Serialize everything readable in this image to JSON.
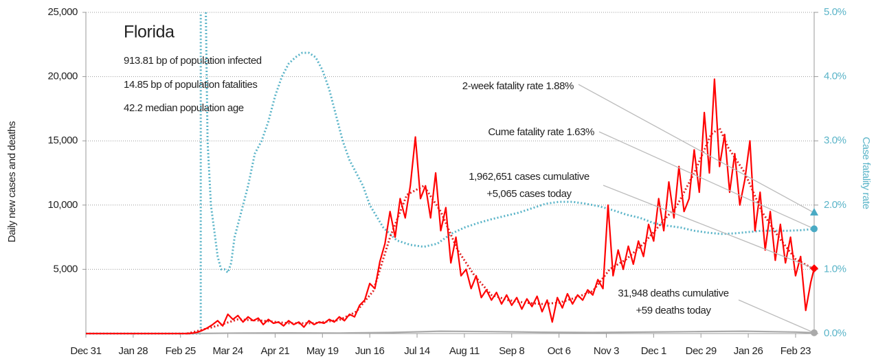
{
  "chart_data": {
    "type": "line",
    "title": "Florida",
    "info": [
      "913.81 bp of population infected",
      "14.85 bp of population fatalities",
      "42.2 median population age"
    ],
    "ylabel": "Daily new cases and deaths",
    "y2label": "Case fatality rate",
    "xlim": [
      0,
      431
    ],
    "xticks": [
      {
        "value": 0,
        "label": "Dec 31"
      },
      {
        "value": 28,
        "label": "Jan 28"
      },
      {
        "value": 56,
        "label": "Feb 25"
      },
      {
        "value": 84,
        "label": "Mar 24"
      },
      {
        "value": 112,
        "label": "Apr 21"
      },
      {
        "value": 140,
        "label": "May 19"
      },
      {
        "value": 168,
        "label": "Jun 16"
      },
      {
        "value": 196,
        "label": "Jul 14"
      },
      {
        "value": 224,
        "label": "Aug 11"
      },
      {
        "value": 252,
        "label": "Sep 8"
      },
      {
        "value": 280,
        "label": "Oct 6"
      },
      {
        "value": 308,
        "label": "Nov 3"
      },
      {
        "value": 336,
        "label": "Dec 1"
      },
      {
        "value": 364,
        "label": "Dec 29"
      },
      {
        "value": 392,
        "label": "Jan 26"
      },
      {
        "value": 420,
        "label": "Feb 23"
      }
    ],
    "ylim": [
      0,
      25000
    ],
    "yticks": [
      {
        "value": 5000,
        "label": "5,000"
      },
      {
        "value": 10000,
        "label": "10,000"
      },
      {
        "value": 15000,
        "label": "15,000"
      },
      {
        "value": 20000,
        "label": "20,000"
      },
      {
        "value": 25000,
        "label": "25,000"
      }
    ],
    "y2lim": [
      0,
      5
    ],
    "y2ticks": [
      {
        "value": 0,
        "label": "0.0%"
      },
      {
        "value": 1,
        "label": "1.0%"
      },
      {
        "value": 2,
        "label": "2.0%"
      },
      {
        "value": 3,
        "label": "3.0%"
      },
      {
        "value": 4,
        "label": "4.0%"
      },
      {
        "value": 5,
        "label": "5.0%"
      }
    ],
    "grid": true,
    "series": [
      {
        "color": "#5ab4c8",
        "style": "dotted",
        "axis": "y2",
        "x": [
          0,
          68,
          68,
          70,
          71,
          72,
          74,
          76,
          78,
          80,
          82,
          84,
          86,
          88,
          92,
          96,
          100,
          104,
          108,
          112,
          116,
          120,
          124,
          128,
          132,
          136,
          140,
          144,
          148,
          152,
          156,
          160,
          164,
          168,
          176,
          184,
          192,
          200,
          208,
          216,
          224,
          232,
          240,
          248,
          256,
          264,
          272,
          280,
          288,
          296,
          304,
          312,
          320,
          328,
          336,
          344,
          352,
          360,
          368,
          376,
          384,
          392,
          400,
          408,
          416,
          424,
          431
        ],
        "values": [
          0,
          0,
          5,
          null,
          5,
          3.0,
          2.0,
          1.6,
          1.2,
          1.0,
          1.0,
          0.95,
          1.1,
          1.5,
          1.9,
          2.3,
          2.8,
          3.0,
          3.3,
          3.7,
          4.0,
          4.2,
          4.3,
          4.37,
          4.37,
          4.3,
          4.1,
          3.8,
          3.4,
          3.0,
          2.7,
          2.5,
          2.3,
          2.0,
          1.65,
          1.45,
          1.38,
          1.35,
          1.4,
          1.55,
          1.65,
          1.72,
          1.78,
          1.83,
          1.88,
          1.95,
          2.02,
          2.05,
          2.05,
          2.02,
          1.98,
          1.92,
          1.85,
          1.8,
          1.72,
          1.68,
          1.65,
          1.6,
          1.57,
          1.55,
          1.56,
          1.58,
          1.6,
          1.6,
          1.6,
          1.61,
          1.63
        ]
      },
      {
        "color": "#aaaaaa",
        "style": "solid",
        "axis": "y",
        "x": [
          0,
          60,
          90,
          120,
          150,
          180,
          210,
          240,
          270,
          300,
          330,
          360,
          390,
          420,
          431
        ],
        "values": [
          0,
          0,
          40,
          50,
          40,
          80,
          180,
          150,
          100,
          80,
          110,
          150,
          180,
          120,
          59
        ]
      },
      {
        "color": "#e02020",
        "style": "dotted",
        "axis": "y",
        "x": [
          60,
          75,
          90,
          105,
          120,
          135,
          150,
          160,
          170,
          180,
          190,
          200,
          210,
          220,
          230,
          240,
          250,
          260,
          270,
          280,
          290,
          300,
          310,
          320,
          330,
          340,
          350,
          360,
          370,
          375,
          380,
          390,
          400,
          410,
          420,
          431
        ],
        "values": [
          0,
          500,
          1100,
          1000,
          800,
          800,
          1050,
          1700,
          3300,
          7500,
          10800,
          11500,
          9500,
          6500,
          4500,
          3000,
          2600,
          2400,
          2300,
          2400,
          2800,
          3300,
          5000,
          5800,
          7000,
          8500,
          10000,
          12500,
          15500,
          16000,
          14500,
          12500,
          9500,
          7500,
          5800,
          5000
        ]
      },
      {
        "color": "#ff0000",
        "style": "solid",
        "axis": "y",
        "x": [
          0,
          57,
          60,
          63,
          66,
          69,
          72,
          75,
          78,
          81,
          84,
          87,
          90,
          93,
          96,
          99,
          102,
          105,
          108,
          111,
          114,
          117,
          120,
          123,
          126,
          129,
          132,
          135,
          138,
          141,
          144,
          147,
          150,
          153,
          156,
          159,
          162,
          165,
          168,
          171,
          174,
          177,
          180,
          183,
          186,
          189,
          192,
          195,
          198,
          201,
          204,
          207,
          210,
          213,
          216,
          219,
          222,
          225,
          228,
          231,
          234,
          237,
          240,
          243,
          246,
          249,
          252,
          255,
          258,
          261,
          264,
          267,
          270,
          273,
          276,
          279,
          282,
          285,
          288,
          291,
          294,
          297,
          300,
          303,
          306,
          309,
          312,
          315,
          318,
          321,
          324,
          327,
          330,
          333,
          336,
          339,
          342,
          345,
          348,
          351,
          354,
          357,
          360,
          363,
          366,
          369,
          372,
          375,
          378,
          381,
          384,
          387,
          390,
          393,
          396,
          399,
          402,
          405,
          408,
          411,
          414,
          417,
          420,
          423,
          426,
          429,
          431
        ],
        "values": [
          0,
          0,
          0,
          30,
          100,
          250,
          450,
          700,
          1000,
          600,
          1500,
          1100,
          1400,
          900,
          1300,
          1000,
          1200,
          700,
          1100,
          800,
          900,
          600,
          1000,
          700,
          900,
          500,
          1000,
          700,
          900,
          800,
          1100,
          900,
          1300,
          1000,
          1500,
          1300,
          2200,
          2600,
          3900,
          3500,
          5600,
          7000,
          9500,
          7500,
          10500,
          9000,
          11500,
          15300,
          10500,
          11500,
          9000,
          12500,
          8000,
          9800,
          5500,
          7500,
          4500,
          5000,
          3500,
          4500,
          2800,
          3400,
          2600,
          3200,
          2300,
          3000,
          2200,
          2800,
          1900,
          2700,
          2100,
          2900,
          1700,
          2600,
          900,
          2800,
          2000,
          3100,
          2300,
          3000,
          2600,
          3400,
          3000,
          4200,
          3500,
          10000,
          4500,
          6500,
          5000,
          6800,
          5400,
          7200,
          6000,
          8500,
          7200,
          10500,
          8000,
          11800,
          9000,
          13000,
          9500,
          10500,
          14300,
          11000,
          17200,
          12500,
          19800,
          13000,
          15500,
          11000,
          14000,
          10000,
          12000,
          15000,
          8000,
          11000,
          6500,
          9500,
          5700,
          8500,
          5500,
          7500,
          4500,
          6000,
          1800,
          4000,
          5065
        ]
      }
    ],
    "annotations": [
      {
        "lines": [
          "2-week fatality rate 1.88%"
        ],
        "value": 1.88,
        "axis": "y2",
        "marker": "triangle",
        "color": "#4aaac4"
      },
      {
        "lines": [
          "Cume fatality rate 1.63%"
        ],
        "value": 1.63,
        "axis": "y2",
        "marker": "circle",
        "color": "#4aaac4"
      },
      {
        "lines": [
          "1,962,651 cases cumulative",
          "+5,065 cases today"
        ],
        "value": 5065,
        "axis": "y",
        "marker": "diamond",
        "color": "#ff0000"
      },
      {
        "lines": [
          "31,948 deaths cumulative",
          "+59 deaths today"
        ],
        "value": 59,
        "axis": "y",
        "marker": "circle",
        "color": "#aaaaaa"
      }
    ]
  }
}
